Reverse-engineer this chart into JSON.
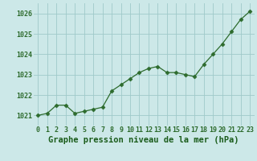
{
  "x": [
    0,
    1,
    2,
    3,
    4,
    5,
    6,
    7,
    8,
    9,
    10,
    11,
    12,
    13,
    14,
    15,
    16,
    17,
    18,
    19,
    20,
    21,
    22,
    23
  ],
  "y": [
    1021.0,
    1021.1,
    1021.5,
    1021.5,
    1021.1,
    1021.2,
    1021.3,
    1021.4,
    1022.2,
    1022.5,
    1022.8,
    1023.1,
    1023.3,
    1023.4,
    1023.1,
    1023.1,
    1023.0,
    1022.9,
    1023.5,
    1024.0,
    1024.5,
    1025.1,
    1025.7,
    1026.1
  ],
  "line_color": "#2d6b2d",
  "marker": "D",
  "marker_size": 2.5,
  "bg_color": "#cce8e8",
  "grid_color": "#9fc9c9",
  "xlabel": "Graphe pression niveau de la mer (hPa)",
  "xlabel_fontsize": 7.5,
  "xlabel_color": "#1a5c1a",
  "ytick_labels": [
    "1021",
    "1022",
    "1023",
    "1024",
    "1025",
    "1026"
  ],
  "yticks": [
    1021,
    1022,
    1023,
    1024,
    1025,
    1026
  ],
  "xticks": [
    0,
    1,
    2,
    3,
    4,
    5,
    6,
    7,
    8,
    9,
    10,
    11,
    12,
    13,
    14,
    15,
    16,
    17,
    18,
    19,
    20,
    21,
    22,
    23
  ],
  "ylim": [
    1020.5,
    1026.5
  ],
  "xlim": [
    -0.5,
    23.5
  ],
  "tick_color": "#2d6b2d",
  "tick_fontsize": 6.0
}
